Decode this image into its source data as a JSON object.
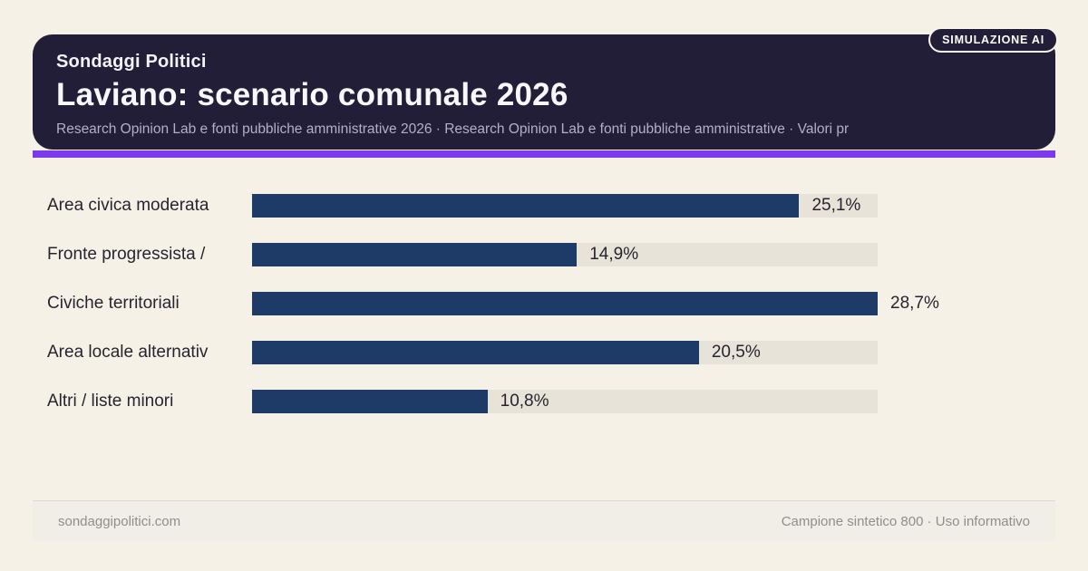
{
  "badge": {
    "label": "SIMULAZIONE AI"
  },
  "header": {
    "eyebrow": "Sondaggi Politici",
    "title": "Laviano: scenario comunale 2026",
    "subtitle": "Research Opinion Lab e fonti pubbliche amministrative 2026 · Research Opinion Lab e fonti pubbliche amministrative · Valori pr"
  },
  "chart_data": {
    "type": "bar",
    "orientation": "horizontal",
    "title": "Laviano: scenario comunale 2026",
    "categories": [
      "Area civica moderata",
      "Fronte progressista /",
      "Civiche territoriali",
      "Area locale alternativ",
      "Altri / liste minori"
    ],
    "values": [
      25.1,
      14.9,
      28.7,
      20.5,
      10.8
    ],
    "display_values": [
      "25,1%",
      "14,9%",
      "28,7%",
      "20,5%",
      "10,8%"
    ],
    "xlim": [
      0,
      28.7
    ],
    "value_suffix": "%",
    "legend": "none",
    "grid": "off",
    "colors": {
      "bar": "#1e3a66",
      "track": "#e8e3d8",
      "accent": "#7c3aed",
      "header_bg": "#221e38",
      "page_bg": "#f6f1e7"
    }
  },
  "footer": {
    "site": "sondaggipolitici.com",
    "note": "Campione sintetico 800 · Uso informativo"
  }
}
